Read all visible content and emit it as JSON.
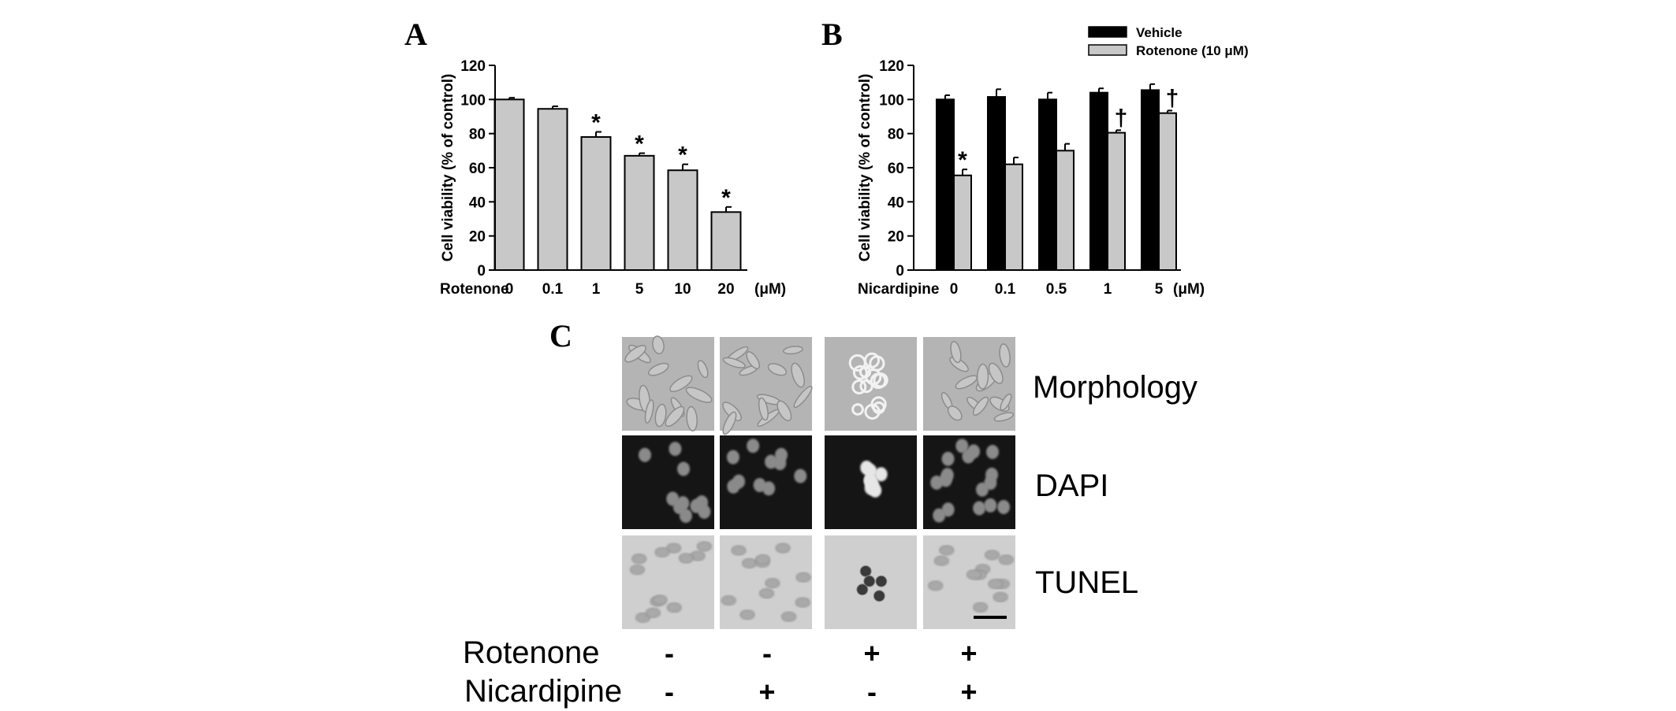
{
  "panels": {
    "A": "A",
    "B": "B",
    "C": "C"
  },
  "chart_data": [
    {
      "type": "bar",
      "panel": "A",
      "categories": [
        "0",
        "0.1",
        "1",
        "5",
        "10",
        "20"
      ],
      "x_group_label": "Rotenone",
      "x_unit": "(μM)",
      "ylabel": "Cell viability (% of control)",
      "ylim": [
        0,
        120
      ],
      "yticks": [
        "0",
        "20",
        "40",
        "60",
        "80",
        "100",
        "120"
      ],
      "series": [
        {
          "values": [
            100,
            94.5,
            78,
            67,
            58.5,
            34
          ],
          "errors": [
            1,
            1.5,
            3,
            1.5,
            3.5,
            3
          ],
          "color": "#c8c8c8"
        }
      ],
      "annotations": [
        {
          "category": "1",
          "text": "*"
        },
        {
          "category": "5",
          "text": "*"
        },
        {
          "category": "10",
          "text": "*"
        },
        {
          "category": "20",
          "text": "*"
        }
      ]
    },
    {
      "type": "bar",
      "panel": "B",
      "categories": [
        "0",
        "0.1",
        "0.5",
        "1",
        "5"
      ],
      "x_group_label": "Nicardipine",
      "x_unit": "(μM)",
      "ylabel": "Cell viability (% of control)",
      "ylim": [
        0,
        120
      ],
      "yticks": [
        "0",
        "20",
        "40",
        "60",
        "80",
        "100",
        "120"
      ],
      "legend_position": "top-right",
      "series": [
        {
          "name": "Vehicle",
          "values": [
            100,
            101.5,
            100,
            104,
            105.5
          ],
          "errors": [
            2.5,
            4.5,
            4,
            2.5,
            3.5
          ],
          "color": "#000000"
        },
        {
          "name": "Rotenone (10 μM)",
          "values": [
            55.5,
            62,
            70,
            80.5,
            92
          ],
          "errors": [
            3.5,
            4,
            4,
            1.5,
            1.5
          ],
          "color": "#c8c8c8"
        }
      ],
      "annotations": [
        {
          "category": "0",
          "series": 1,
          "text": "*"
        },
        {
          "category": "1",
          "series": 1,
          "text": "†"
        },
        {
          "category": "5",
          "series": 1,
          "text": "†"
        }
      ]
    }
  ],
  "micrographs": {
    "rows": [
      "Morphology",
      "DAPI",
      "TUNEL"
    ],
    "treatments": [
      {
        "name": "Rotenone",
        "values": [
          "-",
          "-",
          "+",
          "+"
        ]
      },
      {
        "name": "Nicardipine",
        "values": [
          "-",
          "+",
          "-",
          "+"
        ]
      }
    ]
  }
}
